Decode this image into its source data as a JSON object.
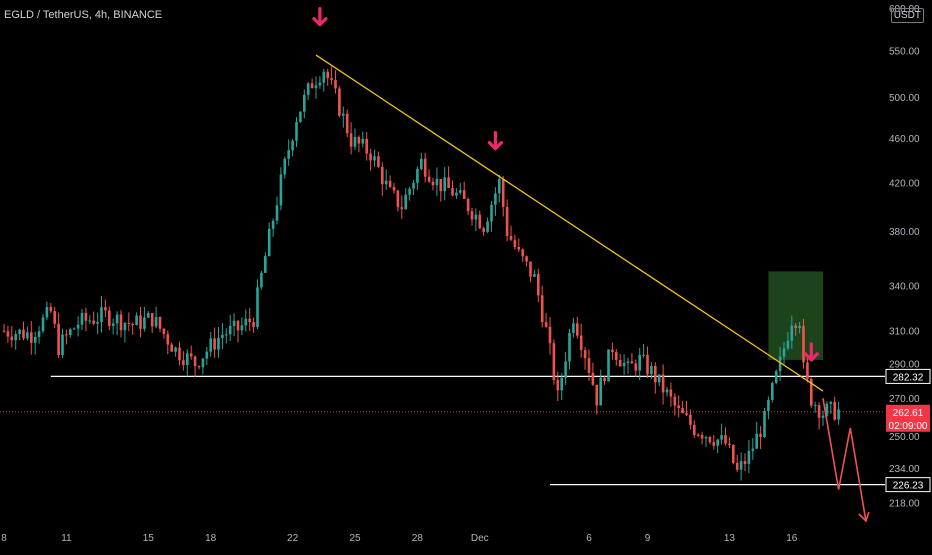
{
  "header": {
    "symbol_line": "EGLD / TetherUS, 4h, BINANCE",
    "currency": "USDT"
  },
  "colors": {
    "background": "#000000",
    "up_candle": "#26a69a",
    "down_candle": "#ef5350",
    "trendline": "#f0c419",
    "arrow": "#f0286a",
    "level_line": "#ffffff",
    "price_badge": "#f23645",
    "zone_fill": "#1f4a1c"
  },
  "chart_data": {
    "type": "candlestick",
    "symbol": "EGLD / TetherUS",
    "interval": "4h",
    "exchange": "BINANCE",
    "y_scale": "log",
    "ylim": [
      210,
      605
    ],
    "y_ticks": [
      218,
      234,
      250,
      270,
      290,
      310,
      340,
      380,
      420,
      460,
      500,
      550,
      600
    ],
    "y_tick_labels": [
      "218.00",
      "234.00",
      "250.00",
      "270.00",
      "290.00",
      "310.00",
      "340.00",
      "380.00",
      "420.00",
      "460.00",
      "500.00",
      "550.00",
      "600.00"
    ],
    "x_ticks": [
      "8",
      "11",
      "15",
      "18",
      "22",
      "25",
      "28",
      "Dec",
      "6",
      "9",
      "13",
      "16"
    ],
    "x_tick_index": [
      0,
      16,
      37,
      53,
      74,
      90,
      106,
      122,
      150,
      165,
      186,
      202
    ],
    "candle_count": 215,
    "path_points": [
      [
        0,
        310
      ],
      [
        8,
        308
      ],
      [
        13,
        322
      ],
      [
        15,
        300
      ],
      [
        20,
        315
      ],
      [
        27,
        320
      ],
      [
        34,
        314
      ],
      [
        39,
        318
      ],
      [
        45,
        298
      ],
      [
        50,
        290
      ],
      [
        57,
        308
      ],
      [
        61,
        311
      ],
      [
        65,
        318
      ],
      [
        69,
        375
      ],
      [
        72,
        420
      ],
      [
        76,
        480
      ],
      [
        80,
        515
      ],
      [
        83,
        530
      ],
      [
        86,
        500
      ],
      [
        90,
        458
      ],
      [
        95,
        446
      ],
      [
        100,
        410
      ],
      [
        103,
        400
      ],
      [
        108,
        438
      ],
      [
        112,
        420
      ],
      [
        116,
        412
      ],
      [
        120,
        400
      ],
      [
        124,
        385
      ],
      [
        128,
        420
      ],
      [
        130,
        380
      ],
      [
        133,
        362
      ],
      [
        137,
        345
      ],
      [
        140,
        310
      ],
      [
        143,
        270
      ],
      [
        147,
        320
      ],
      [
        150,
        296
      ],
      [
        153,
        270
      ],
      [
        157,
        300
      ],
      [
        161,
        286
      ],
      [
        164,
        292
      ],
      [
        167,
        285
      ],
      [
        171,
        272
      ],
      [
        174,
        262
      ],
      [
        178,
        254
      ],
      [
        182,
        250
      ],
      [
        186,
        246
      ],
      [
        189,
        232
      ],
      [
        192,
        240
      ],
      [
        196,
        258
      ],
      [
        200,
        290
      ],
      [
        203,
        318
      ],
      [
        205,
        318
      ],
      [
        206,
        286
      ],
      [
        208,
        270
      ],
      [
        211,
        262
      ],
      [
        212,
        263
      ]
    ],
    "last_price": "262.61",
    "countdown": "02:09:00",
    "horizontal_levels": [
      {
        "label": "282.32",
        "value": 282.32
      },
      {
        "label": "226.23",
        "value": 226.23
      }
    ],
    "trendline": {
      "from": [
        80,
        545
      ],
      "to": [
        210,
        274
      ]
    },
    "annotations": {
      "arrows_down": [
        [
          81,
          580
        ],
        [
          126,
          450
        ],
        [
          207,
          292
        ]
      ],
      "zone": {
        "x_range": [
          196,
          210
        ],
        "y_range": [
          292,
          350
        ]
      },
      "projected_path": [
        [
          210,
          270
        ],
        [
          214,
          224
        ],
        [
          217,
          254
        ],
        [
          221,
          210
        ]
      ]
    }
  }
}
